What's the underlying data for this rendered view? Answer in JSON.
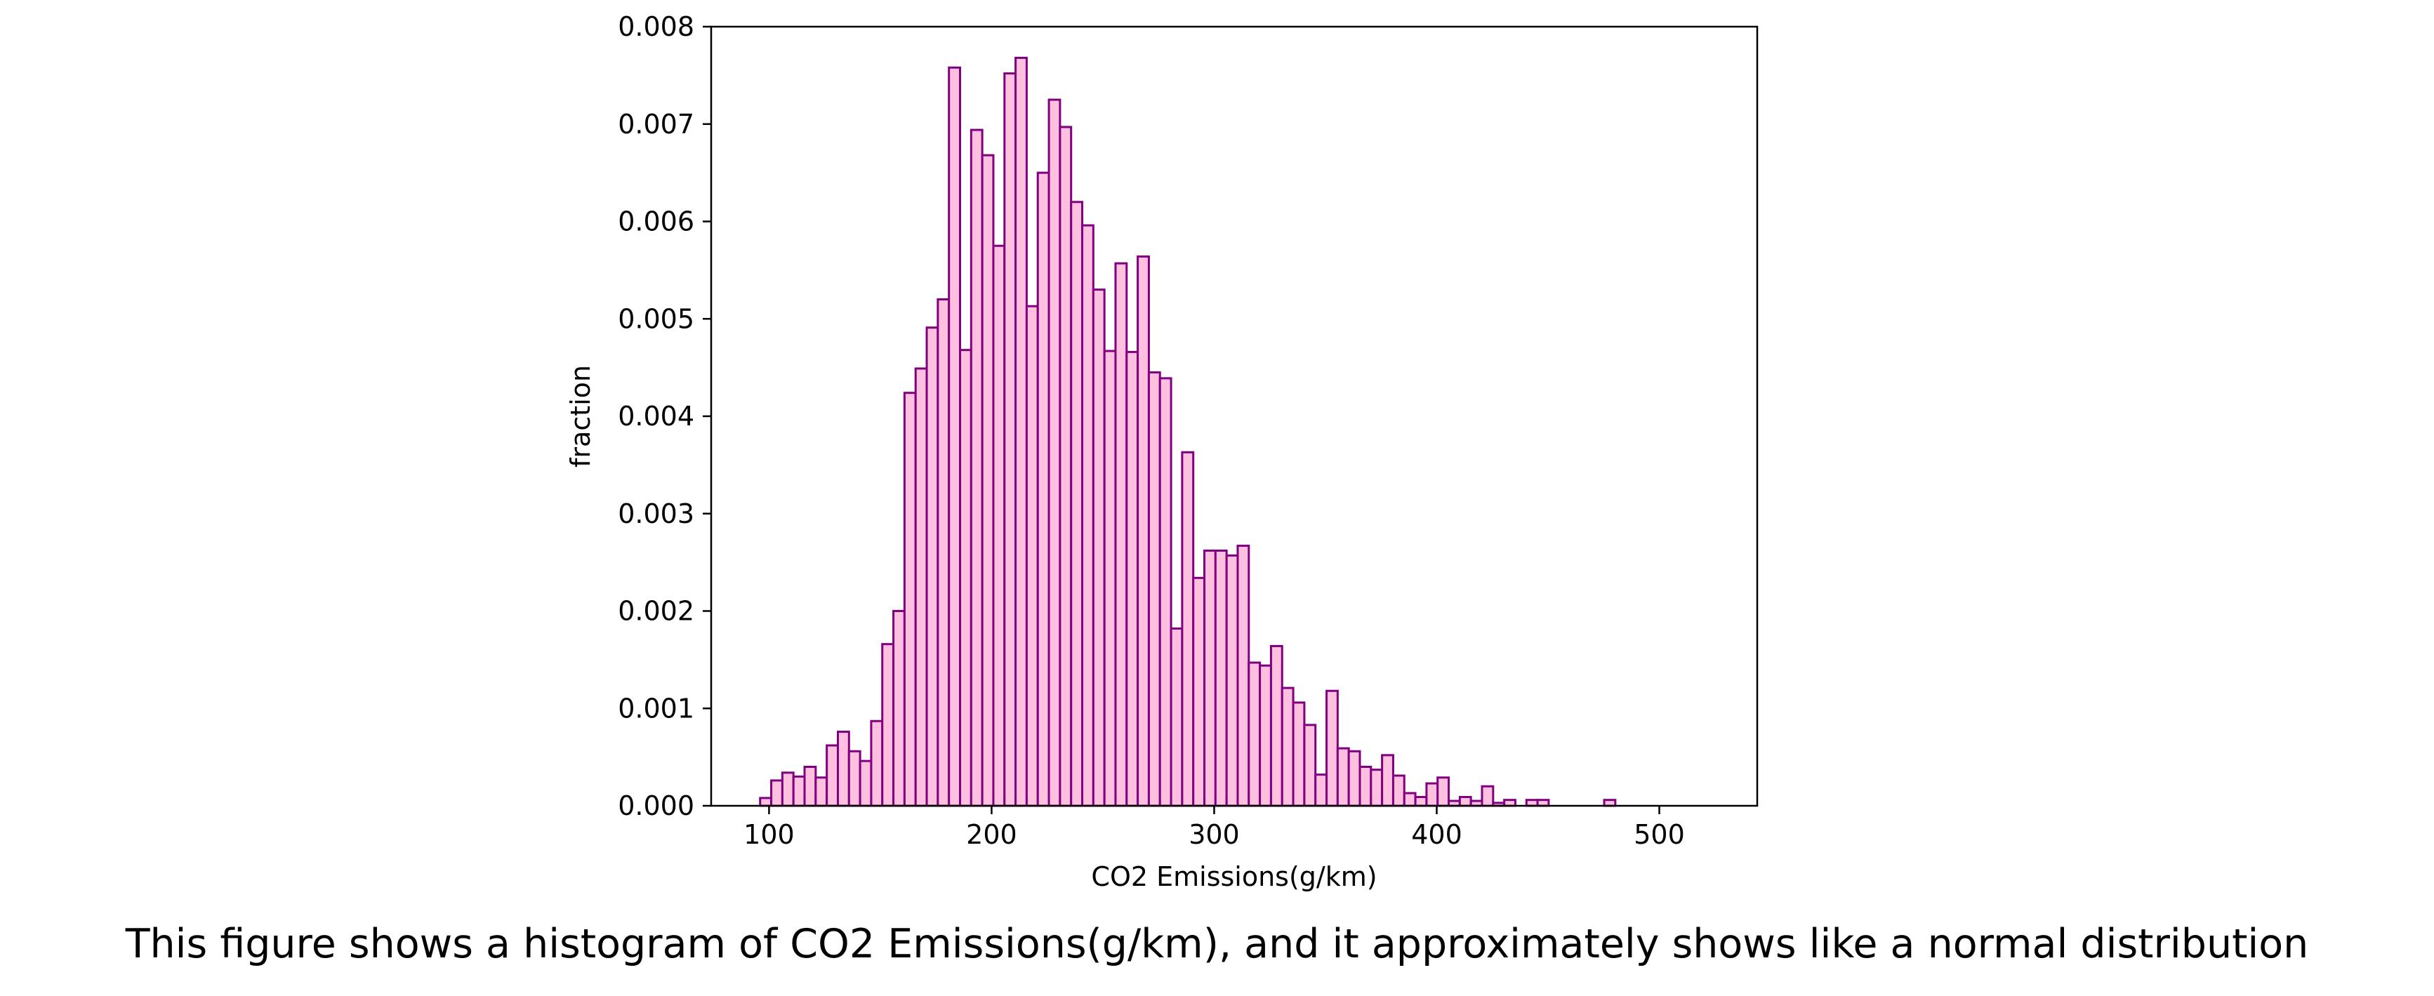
{
  "caption": "This figure shows a histogram of CO2 Emissions(g/km), and it approximately shows like a normal distribution",
  "chart_data": {
    "type": "histogram",
    "xlabel": "CO2 Emissions(g/km)",
    "ylabel": "fraction",
    "xlim": [
      74,
      544
    ],
    "ylim": [
      0,
      0.008
    ],
    "xticks": [
      100,
      200,
      300,
      400,
      500
    ],
    "yticks": [
      0.0,
      0.001,
      0.002,
      0.003,
      0.004,
      0.005,
      0.006,
      0.007,
      0.008
    ],
    "ytick_labels": [
      "0.000",
      "0.001",
      "0.002",
      "0.003",
      "0.004",
      "0.005",
      "0.006",
      "0.007",
      "0.008"
    ],
    "bin_start": 96,
    "bin_width": 4.99,
    "values": [
      8e-05,
      0.00026,
      0.00034,
      0.0003,
      0.0004,
      0.00029,
      0.00062,
      0.00076,
      0.00056,
      0.00046,
      0.00087,
      0.00166,
      0.002,
      0.00424,
      0.00449,
      0.00491,
      0.0052,
      0.00758,
      0.00468,
      0.00694,
      0.00668,
      0.00575,
      0.00752,
      0.00768,
      0.00513,
      0.0065,
      0.00725,
      0.00697,
      0.0062,
      0.00596,
      0.0053,
      0.00467,
      0.00557,
      0.00466,
      0.00564,
      0.00445,
      0.00439,
      0.00182,
      0.00363,
      0.00234,
      0.00262,
      0.00262,
      0.00257,
      0.00267,
      0.00147,
      0.00144,
      0.00164,
      0.00121,
      0.00106,
      0.00083,
      0.00032,
      0.00118,
      0.00059,
      0.00056,
      0.0004,
      0.00037,
      0.00052,
      0.00031,
      0.00013,
      9e-05,
      0.00023,
      0.00029,
      5e-05,
      9e-05,
      5e-05,
      0.0002,
      3e-05,
      6e-05,
      0,
      6e-05,
      6e-05,
      0,
      0,
      0,
      0,
      0,
      6e-05
    ],
    "colors": {
      "fill": "#ffc0e0",
      "edge": "#800080",
      "axis": "#000000"
    }
  }
}
